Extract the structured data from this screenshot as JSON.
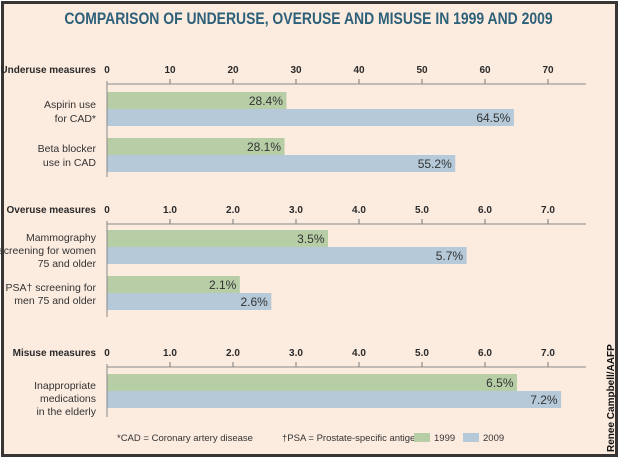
{
  "title": "COMPARISON OF UNDERUSE, OVERUSE AND MISUSE IN 1999 AND 2009",
  "credit": "Renee Campbell/AAFP",
  "colors": {
    "series_1999": "#b6cda6",
    "series_2009": "#b5c9d8",
    "title": "#2d6079",
    "background": "#fcebdf",
    "frame": "#3a3535"
  },
  "footnotes": [
    "*CAD = Coronary artery disease",
    "†PSA = Prostate-specific antigen"
  ],
  "legend": [
    {
      "label": "1999",
      "color": "#b6cda6"
    },
    {
      "label": "2009",
      "color": "#b5c9d8"
    }
  ],
  "chart_data": [
    {
      "type": "bar",
      "orientation": "horizontal",
      "section_label": "Underuse measures",
      "xlim": [
        0,
        70
      ],
      "ticks": [
        "0",
        "10",
        "20",
        "30",
        "40",
        "50",
        "60",
        "70"
      ],
      "tick_values": [
        0,
        10,
        20,
        30,
        40,
        50,
        60,
        70
      ],
      "categories": [
        [
          "Aspirin use",
          "for CAD*"
        ],
        [
          "Beta blocker",
          "use in CAD"
        ]
      ],
      "series": [
        {
          "name": "1999",
          "values": [
            28.4,
            28.1
          ],
          "labels": [
            "28.4%",
            "28.1%"
          ]
        },
        {
          "name": "2009",
          "values": [
            64.5,
            55.2
          ],
          "labels": [
            "64.5%",
            "55.2%"
          ]
        }
      ],
      "unit": "%"
    },
    {
      "type": "bar",
      "orientation": "horizontal",
      "section_label": "Overuse measures",
      "xlim": [
        0,
        7
      ],
      "ticks": [
        "0",
        "1.0",
        "2.0",
        "3.0",
        "4.0",
        "5.0",
        "6.0",
        "7.0"
      ],
      "tick_values": [
        0,
        1,
        2,
        3,
        4,
        5,
        6,
        7
      ],
      "categories": [
        [
          "Mammography",
          "screening for women",
          "75 and older"
        ],
        [
          "PSA† screening for",
          "men 75 and older"
        ]
      ],
      "series": [
        {
          "name": "1999",
          "values": [
            3.5,
            2.1
          ],
          "labels": [
            "3.5%",
            "2.1%"
          ]
        },
        {
          "name": "2009",
          "values": [
            5.7,
            2.6
          ],
          "labels": [
            "5.7%",
            "2.6%"
          ]
        }
      ],
      "unit": "%"
    },
    {
      "type": "bar",
      "orientation": "horizontal",
      "section_label": "Misuse measures",
      "xlim": [
        0,
        7
      ],
      "ticks": [
        "0",
        "1.0",
        "2.0",
        "3.0",
        "4.0",
        "5.0",
        "6.0",
        "7.0"
      ],
      "tick_values": [
        0,
        1,
        2,
        3,
        4,
        5,
        6,
        7
      ],
      "categories": [
        [
          "Inappropriate",
          "medications",
          "in the elderly"
        ]
      ],
      "series": [
        {
          "name": "1999",
          "values": [
            6.5
          ],
          "labels": [
            "6.5%"
          ]
        },
        {
          "name": "2009",
          "values": [
            7.2
          ],
          "labels": [
            "7.2%"
          ]
        }
      ],
      "unit": "%"
    }
  ]
}
